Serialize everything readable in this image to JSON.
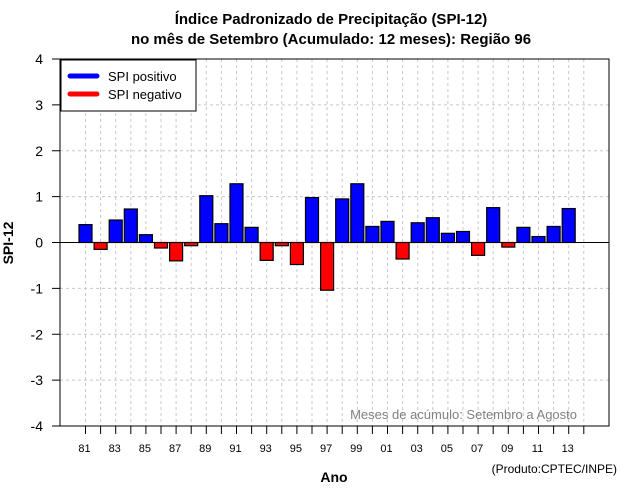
{
  "chart_data": {
    "type": "bar",
    "title": "Índice Padronizado de Precipitação (SPI-12)",
    "subtitle": "no mês de Setembro (Acumulado: 12 meses): Região 96",
    "xlabel": "Ano",
    "ylabel": "SPI-12",
    "ylim": [
      -4,
      4
    ],
    "yticks": [
      "4",
      "3",
      "2",
      "1",
      "0",
      "-1",
      "-2",
      "-3",
      "-4"
    ],
    "ytick_values": [
      4,
      3,
      2,
      1,
      0,
      -1,
      -2,
      -3,
      -4
    ],
    "xlim_years": [
      1980,
      2015
    ],
    "xtick_labels": [
      "81",
      "83",
      "85",
      "87",
      "89",
      "91",
      "93",
      "95",
      "97",
      "99",
      "01",
      "03",
      "05",
      "07",
      "09",
      "11",
      "13"
    ],
    "xtick_years": [
      1981,
      1983,
      1985,
      1987,
      1989,
      1991,
      1993,
      1995,
      1997,
      1999,
      2001,
      2003,
      2005,
      2007,
      2009,
      2011,
      2013
    ],
    "minor_tick_years": [
      1981,
      1982,
      1983,
      1984,
      1985,
      1986,
      1987,
      1988,
      1989,
      1990,
      1991,
      1992,
      1993,
      1994,
      1995,
      1996,
      1997,
      1998,
      1999,
      2000,
      2001,
      2002,
      2003,
      2004,
      2005,
      2006,
      2007,
      2008,
      2009,
      2010,
      2011,
      2012,
      2013,
      2014
    ],
    "grid": true,
    "categories": [
      1981,
      1982,
      1983,
      1984,
      1985,
      1986,
      1987,
      1988,
      1989,
      1990,
      1991,
      1992,
      1993,
      1994,
      1995,
      1996,
      1997,
      1998,
      1999,
      2000,
      2001,
      2002,
      2003,
      2004,
      2005,
      2006,
      2007,
      2008,
      2009,
      2010,
      2011,
      2012,
      2013
    ],
    "values": [
      0.39,
      -0.15,
      0.49,
      0.73,
      0.17,
      -0.12,
      -0.4,
      -0.07,
      1.02,
      0.41,
      1.28,
      0.33,
      -0.39,
      -0.07,
      -0.48,
      0.98,
      -1.04,
      0.95,
      1.28,
      0.35,
      0.46,
      -0.36,
      0.43,
      0.54,
      0.2,
      0.24,
      -0.28,
      0.76,
      -0.1,
      0.33,
      0.13,
      0.35,
      0.74
    ],
    "legend": {
      "placement": "top-left",
      "entries": [
        {
          "label": "SPI positivo",
          "color": "#0000ff"
        },
        {
          "label": "SPI negativo",
          "color": "#ff0000"
        }
      ]
    },
    "colors": {
      "positive": "#0000ff",
      "negative": "#ff0000",
      "grid": "#c8c8c8",
      "annotation": "#808080"
    },
    "annotation": "Meses de acúmulo: Setembro a Agosto",
    "credit": "(Produto:CPTEC/INPE)"
  }
}
